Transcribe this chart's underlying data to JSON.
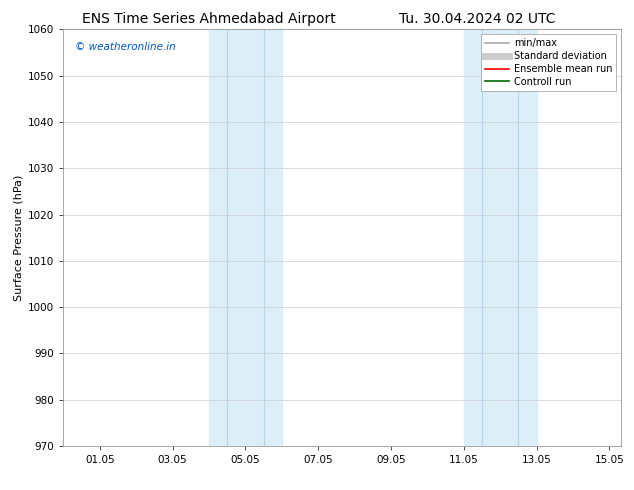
{
  "title_left": "ENS Time Series Ahmedabad Airport",
  "title_right": "Tu. 30.04.2024 02 UTC",
  "ylabel": "Surface Pressure (hPa)",
  "ylim": [
    970,
    1060
  ],
  "yticks": [
    970,
    980,
    990,
    1000,
    1010,
    1020,
    1030,
    1040,
    1050,
    1060
  ],
  "xlim_start": 0.0,
  "xlim_end": 15.33,
  "xtick_positions": [
    1,
    3,
    5,
    7,
    9,
    11,
    13,
    15
  ],
  "xtick_labels": [
    "01.05",
    "03.05",
    "05.05",
    "07.05",
    "09.05",
    "11.05",
    "13.05",
    "15.05"
  ],
  "shaded_bands": [
    {
      "xmin": 4.0,
      "xmax": 4.5,
      "color": "#dceef8"
    },
    {
      "xmin": 4.5,
      "xmax": 5.5,
      "color": "#dceef8"
    },
    {
      "xmin": 5.5,
      "xmax": 6.0,
      "color": "#dceef8"
    },
    {
      "xmin": 11.0,
      "xmax": 11.5,
      "color": "#dceef8"
    },
    {
      "xmin": 11.5,
      "xmax": 12.5,
      "color": "#dceef8"
    },
    {
      "xmin": 12.5,
      "xmax": 13.0,
      "color": "#dceef8"
    }
  ],
  "band1_xmin": 4.0,
  "band1_xmax": 6.0,
  "band2_xmin": 11.0,
  "band2_xmax": 13.0,
  "band_color": "#dceef8",
  "vline_color": "#b8d4e8",
  "vlines_band1": [
    4.5,
    5.5
  ],
  "vlines_band2": [
    11.5,
    12.5
  ],
  "watermark_text": "© weatheronline.in",
  "watermark_color": "#0055cc",
  "legend_entries": [
    {
      "label": "min/max",
      "color": "#aaaaaa",
      "lw": 1.2,
      "style": "-"
    },
    {
      "label": "Standard deviation",
      "color": "#cccccc",
      "lw": 5,
      "style": "-"
    },
    {
      "label": "Ensemble mean run",
      "color": "#ff0000",
      "lw": 1.2,
      "style": "-"
    },
    {
      "label": "Controll run",
      "color": "#006600",
      "lw": 1.2,
      "style": "-"
    }
  ],
  "background_color": "#ffffff",
  "plot_bg_color": "#ffffff",
  "grid_color": "#cccccc",
  "title_fontsize": 10,
  "tick_fontsize": 7.5,
  "ylabel_fontsize": 8,
  "legend_fontsize": 7,
  "watermark_fontsize": 7.5
}
